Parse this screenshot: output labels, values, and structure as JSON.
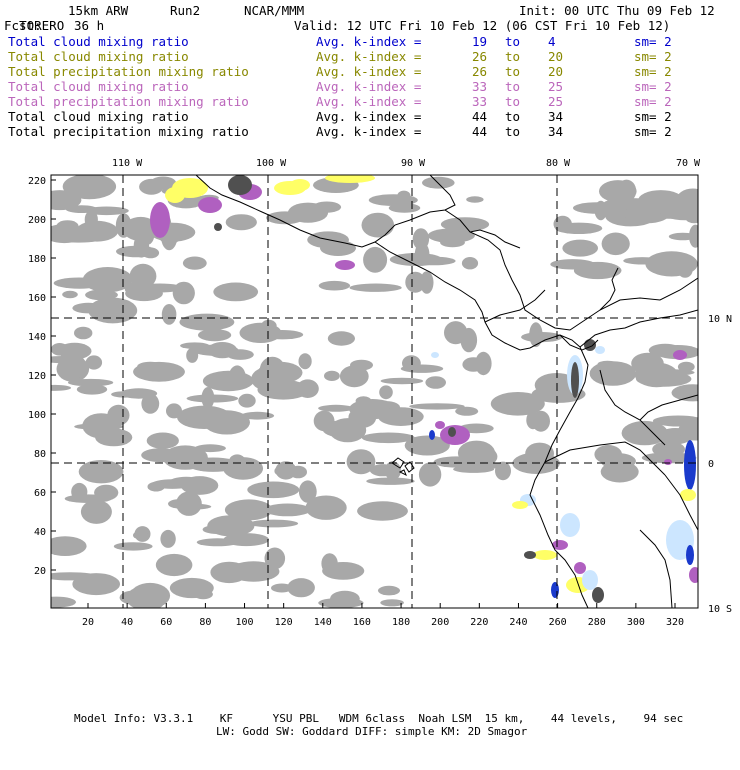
{
  "header": {
    "model": "TORERO",
    "config": "15km ARW",
    "run": "Run2",
    "org": "NCAR/MMM",
    "init_label": "Init: 00 UTC Thu 09 Feb 12",
    "fcst_label": "Fcst:",
    "fcst_value": "36 h",
    "valid_label": "Valid: 12 UTC Fri 10 Feb 12 (06 CST Fri 10 Feb 12)"
  },
  "fields": [
    {
      "name": "Total cloud mixing ratio",
      "kidx": "Avg. k-index =",
      "from": "19",
      "to_word": "to",
      "to": "4",
      "sm": "sm= 2",
      "color": "#0000cc"
    },
    {
      "name": "Total cloud mixing ratio",
      "kidx": "Avg. k-index =",
      "from": "26",
      "to_word": "to",
      "to": "20",
      "sm": "sm= 2",
      "color": "#888800"
    },
    {
      "name": "Total precipitation mixing ratio",
      "kidx": "Avg. k-index =",
      "from": "26",
      "to_word": "to",
      "to": "20",
      "sm": "sm= 2",
      "color": "#888800"
    },
    {
      "name": "Total cloud mixing ratio",
      "kidx": "Avg. k-index =",
      "from": "33",
      "to_word": "to",
      "to": "25",
      "sm": "sm= 2",
      "color": "#bb66bb"
    },
    {
      "name": "Total precipitation mixing ratio",
      "kidx": "Avg. k-index =",
      "from": "33",
      "to_word": "to",
      "to": "25",
      "sm": "sm= 2",
      "color": "#bb66bb"
    },
    {
      "name": "Total cloud mixing ratio",
      "kidx": "Avg. k-index =",
      "from": "44",
      "to_word": "to",
      "to": "34",
      "sm": "sm= 2",
      "color": "#000000"
    },
    {
      "name": "Total precipitation mixing ratio",
      "kidx": "Avg. k-index =",
      "from": "44",
      "to_word": "to",
      "to": "34",
      "sm": "sm= 2",
      "color": "#000000"
    }
  ],
  "map": {
    "lon_labels": [
      "110 W",
      "100 W",
      "90 W",
      "80 W",
      "70 W"
    ],
    "lat_labels": [
      "10 N",
      "0",
      "10 S"
    ],
    "y_ticks": [
      "220",
      "200",
      "180",
      "160",
      "140",
      "120",
      "100",
      "80",
      "60",
      "40",
      "20"
    ],
    "x_ticks": [
      "20",
      "40",
      "60",
      "80",
      "100",
      "120",
      "140",
      "160",
      "180",
      "200",
      "220",
      "240",
      "260",
      "280",
      "300",
      "320"
    ],
    "colors": {
      "cloud_gray": "#a8a8a8",
      "dark_gray": "#505050",
      "yellow": "#ffff66",
      "purple": "#b060c0",
      "light_blue": "#cce6ff",
      "blue": "#1a3acc",
      "coast": "#000000"
    }
  },
  "footer": {
    "line1": "Model Info: V3.3.1    KF      YSU PBL   WDM 6class  Noah LSM  15 km,    44 levels,    94 sec",
    "line2": "LW: Godd SW: Goddard DIFF: simple KM: 2D Smagor"
  }
}
